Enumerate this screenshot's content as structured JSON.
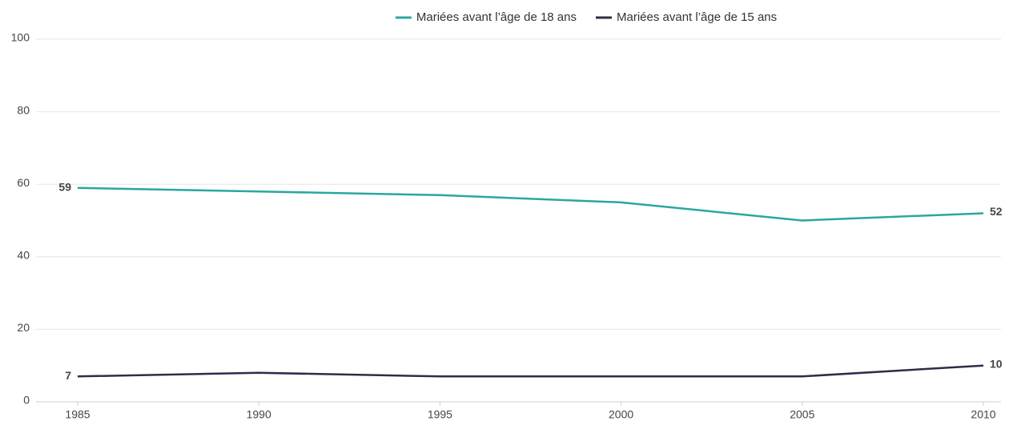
{
  "chart_data": {
    "type": "line",
    "x": [
      1985,
      1990,
      1995,
      2000,
      2005,
      2010
    ],
    "series": [
      {
        "name": "Mariées avant l’âge de 18 ans",
        "color": "#2aa79e",
        "values": [
          59,
          58,
          57,
          55,
          50,
          52
        ]
      },
      {
        "name": "Mariées avant l’âge de 15 ans",
        "color": "#2e2d48",
        "values": [
          7,
          8,
          7,
          7,
          7,
          10
        ]
      }
    ],
    "xlim": [
      1985,
      2010
    ],
    "xticks": [
      1985,
      1990,
      1995,
      2000,
      2005,
      2010
    ],
    "ylim": [
      0,
      100
    ],
    "yticks": [
      0,
      20,
      40,
      60,
      80,
      100
    ],
    "grid": true,
    "legend": "top"
  }
}
